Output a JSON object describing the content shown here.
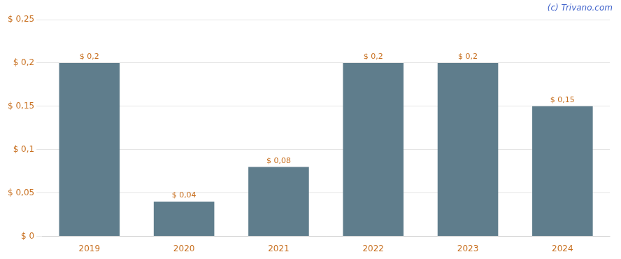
{
  "chart_data": {
    "type": "bar",
    "categories": [
      "2019",
      "2020",
      "2021",
      "2022",
      "2023",
      "2024"
    ],
    "values": [
      0.2,
      0.04,
      0.08,
      0.2,
      0.2,
      0.15
    ],
    "value_labels": [
      "$ 0,2",
      "$ 0,04",
      "$ 0,08",
      "$ 0,2",
      "$ 0,2",
      "$ 0,15"
    ],
    "data_labels": true,
    "color": "#5f7d8c",
    "ylim": [
      0,
      0.25
    ],
    "yticks": [
      {
        "value": 0,
        "label": "$ 0"
      },
      {
        "value": 0.05,
        "label": "$ 0,05"
      },
      {
        "value": 0.1,
        "label": "$ 0,1"
      },
      {
        "value": 0.15,
        "label": "$ 0,15"
      },
      {
        "value": 0.2,
        "label": "$ 0,2"
      },
      {
        "value": 0.25,
        "label": "$ 0,25"
      }
    ],
    "grid": true,
    "annotations": [
      "(c) Trivano.com"
    ]
  }
}
